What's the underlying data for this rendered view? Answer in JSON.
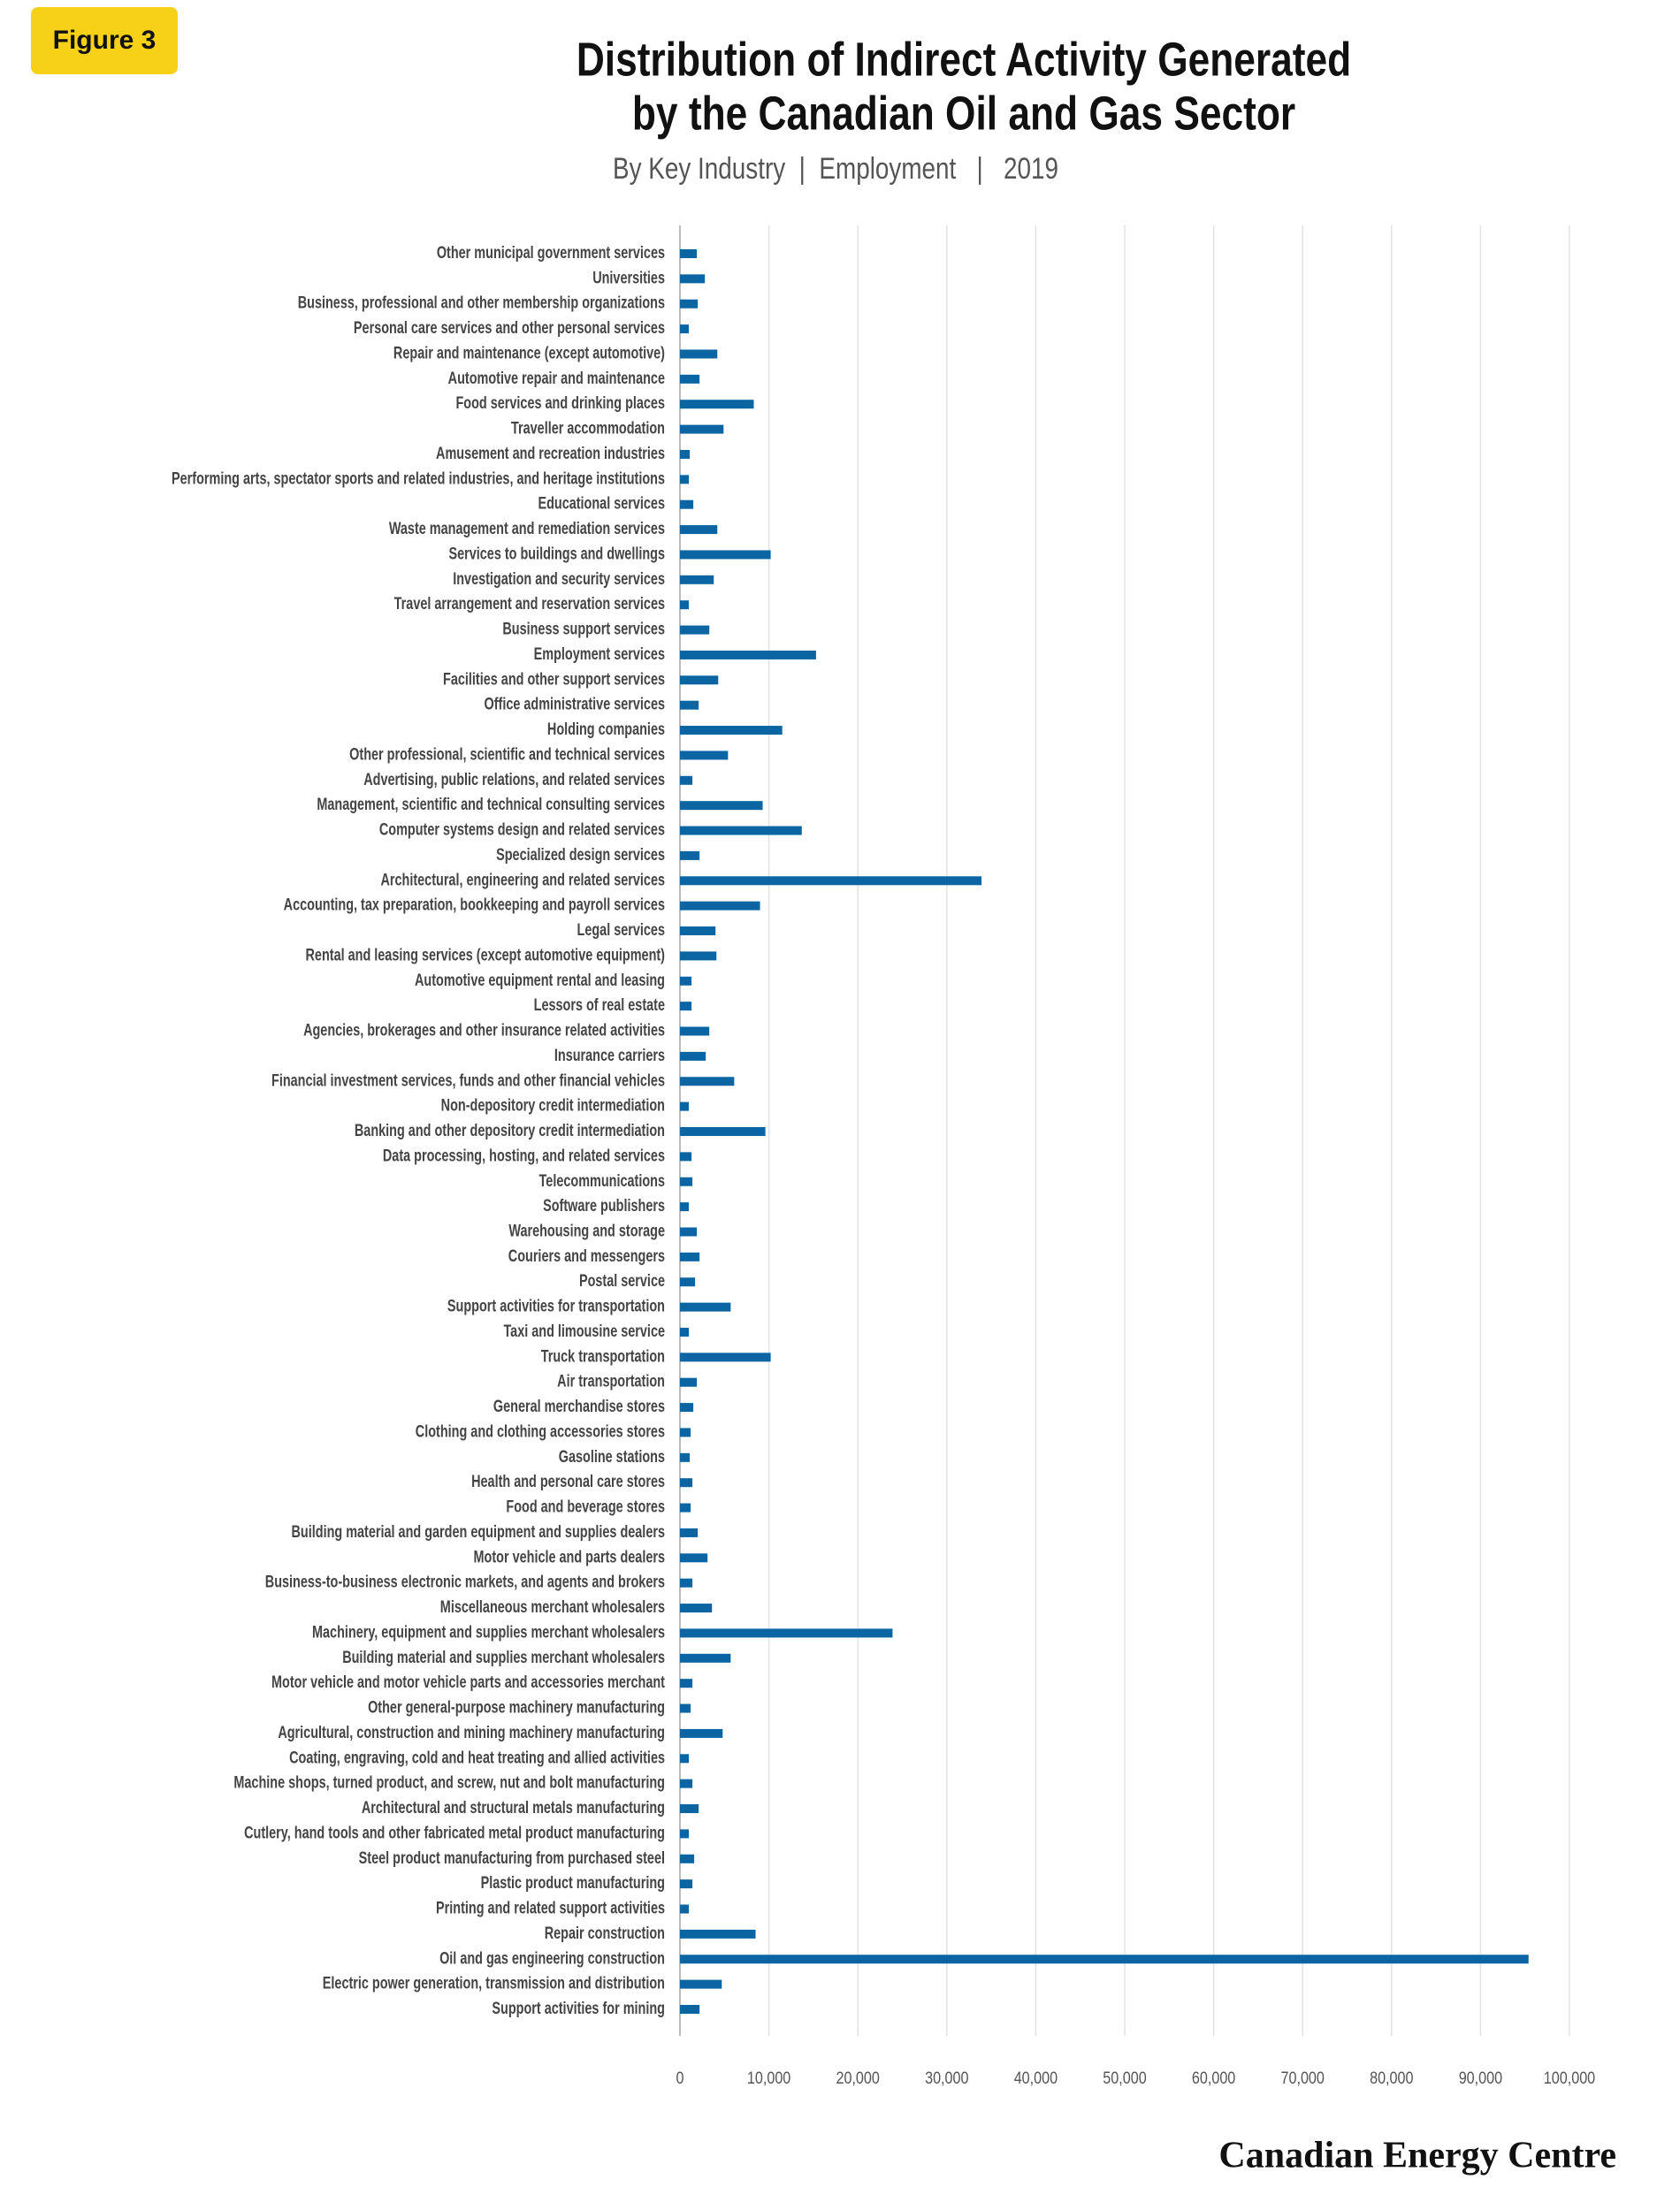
{
  "badge": "Figure 3",
  "brand": "Canadian Energy Centre",
  "chart_data": {
    "type": "bar",
    "orientation": "horizontal",
    "title": [
      "Distribution of Indirect Activity Generated",
      "by the Canadian Oil and Gas Sector"
    ],
    "subtitle": "By Key Industry  |  Employment   |   2019",
    "color": "#0b65a3",
    "grid": true,
    "xlim": [
      0,
      100000
    ],
    "xticks": [
      0,
      {
        "value": 10000,
        "label": "10,000"
      },
      {
        "value": 20000,
        "label": "20,000"
      },
      {
        "value": 30000,
        "label": "30,000"
      },
      {
        "value": 40000,
        "label": "40,000"
      },
      {
        "value": 50000,
        "label": "50,000"
      },
      {
        "value": 60000,
        "label": "60,000"
      },
      {
        "value": 70000,
        "label": "70,000"
      },
      {
        "value": 80000,
        "label": "80,000"
      },
      {
        "value": 90000,
        "label": "90,000"
      },
      {
        "value": 100000,
        "label": "100,000"
      }
    ],
    "categories": [
      "Other municipal government services",
      "Universities",
      "Business, professional and other membership organizations",
      "Personal care services and other personal services",
      "Repair and maintenance (except automotive)",
      "Automotive repair and maintenance",
      "Food services and drinking places",
      "Traveller accommodation",
      "Amusement and recreation industries",
      "Performing arts, spectator sports and related industries, and heritage institutions",
      "Educational services",
      "Waste management and remediation services",
      "Services to buildings and dwellings",
      "Investigation and security services",
      "Travel arrangement and reservation services",
      "Business support services",
      "Employment services",
      "Facilities and other support services",
      "Office administrative services",
      "Holding companies",
      "Other professional, scientific and technical services",
      "Advertising, public relations,  and related services",
      "Management, scientific and technical consulting services",
      "Computer systems design and related services",
      "Specialized design services",
      "Architectural, engineering and related services",
      "Accounting, tax preparation, bookkeeping and payroll services",
      "Legal services",
      "Rental and leasing services (except automotive equipment)",
      "Automotive equipment rental and leasing",
      "Lessors of real estate",
      "Agencies, brokerages and other insurance related activities",
      "Insurance carriers",
      "Financial investment services, funds and other financial vehicles",
      "Non-depository credit intermediation",
      "Banking and other depository credit intermediation",
      "Data processing, hosting, and related services",
      "Telecommunications",
      "Software publishers",
      "Warehousing and storage",
      "Couriers and messengers",
      "Postal service",
      "Support activities for transportation",
      "Taxi and limousine service",
      "Truck transportation",
      "Air transportation",
      "General merchandise stores",
      "Clothing and clothing accessories stores",
      "Gasoline stations",
      "Health and personal care stores",
      "Food and beverage stores",
      "Building material and garden equipment and supplies dealers",
      "Motor vehicle and parts dealers",
      "Business-to-business electronic markets, and agents and brokers",
      "Miscellaneous merchant wholesalers",
      "Machinery, equipment and supplies merchant wholesalers",
      "Building material and supplies merchant wholesalers",
      "Motor vehicle and motor vehicle parts and accessories merchant",
      "Other general-purpose machinery manufacturing",
      "Agricultural, construction and mining machinery manufacturing",
      "Coating, engraving, cold and heat treating and allied activities",
      "Machine shops, turned product, and screw, nut and bolt manufacturing",
      "Architectural and structural metals manufacturing",
      "Cutlery, hand tools and other fabricated metal product manufacturing",
      "Steel product manufacturing from purchased steel",
      "Plastic product manufacturing",
      "Printing and related support activities",
      "Repair construction",
      "Oil and gas engineering construction",
      "Electric power generation, transmission and distribution",
      "Support activities for mining"
    ],
    "values": [
      1900,
      2800,
      2000,
      1000,
      4200,
      2200,
      8300,
      4900,
      1100,
      1000,
      1500,
      4200,
      10200,
      3800,
      1000,
      3300,
      15300,
      4300,
      2100,
      11500,
      5400,
      1400,
      9300,
      13700,
      2200,
      33900,
      9000,
      4000,
      4100,
      1300,
      1300,
      3300,
      2900,
      6100,
      1000,
      9600,
      1300,
      1400,
      1000,
      1900,
      2200,
      1700,
      5700,
      1000,
      10200,
      1900,
      1500,
      1200,
      1100,
      1400,
      1200,
      2000,
      3100,
      1400,
      3600,
      23900,
      5700,
      1400,
      1200,
      4800,
      1000,
      1400,
      2100,
      1000,
      1600,
      1400,
      1000,
      8500,
      95400,
      4700,
      2200
    ]
  }
}
